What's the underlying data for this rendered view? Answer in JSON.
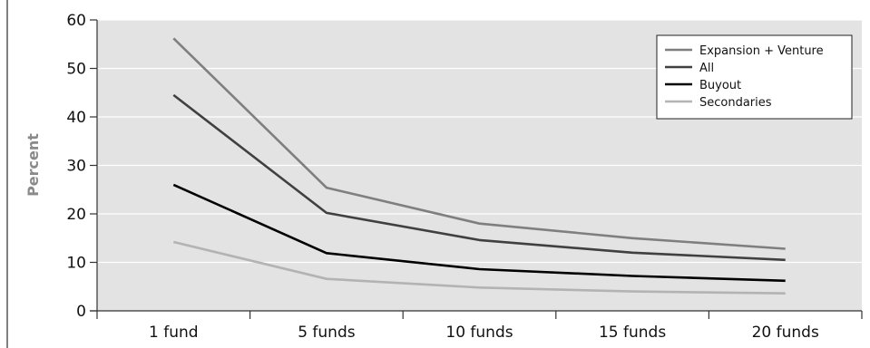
{
  "chart_data": {
    "type": "line",
    "categories": [
      "1 fund",
      "5 funds",
      "10 funds",
      "15 funds",
      "20 funds"
    ],
    "ylabel": "Percent",
    "ylim": [
      0,
      60
    ],
    "yticks": [
      0,
      10,
      20,
      30,
      40,
      50,
      60
    ],
    "grid": true,
    "legend_position": "top-right",
    "plot_background": "#e3e3e3",
    "series": [
      {
        "name": "Expansion + Venture",
        "color": "#7f7f7f",
        "values": [
          56.2,
          25.4,
          18.0,
          15.0,
          12.8
        ]
      },
      {
        "name": "All",
        "color": "#404040",
        "values": [
          44.5,
          20.2,
          14.6,
          12.0,
          10.5
        ]
      },
      {
        "name": "Buyout",
        "color": "#000000",
        "values": [
          26.0,
          11.9,
          8.6,
          7.2,
          6.2
        ]
      },
      {
        "name": "Secondaries",
        "color": "#b3b3b3",
        "values": [
          14.2,
          6.6,
          4.8,
          4.0,
          3.6
        ]
      }
    ]
  }
}
